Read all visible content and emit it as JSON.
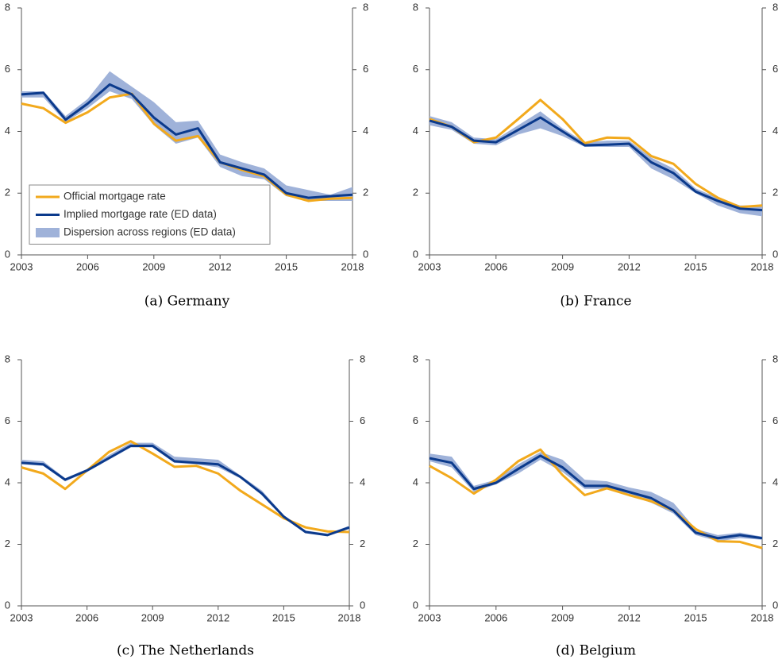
{
  "chart_data": [
    {
      "type": "line",
      "title": "(a) Germany",
      "x": [
        2003,
        2004,
        2005,
        2006,
        2007,
        2008,
        2009,
        2010,
        2011,
        2012,
        2013,
        2014,
        2015,
        2016,
        2017,
        2018
      ],
      "xlim": [
        2003,
        2018
      ],
      "xticks": [
        2003,
        2006,
        2009,
        2012,
        2015,
        2018
      ],
      "ylim": [
        0,
        8
      ],
      "yticks": [
        0,
        2,
        4,
        6,
        8
      ],
      "y2lim": [
        0,
        8
      ],
      "y2ticks": [
        0,
        2,
        4,
        6,
        8
      ],
      "legend": "lower left",
      "series": [
        {
          "name": "Official mortgage rate",
          "color": "#f2a91c",
          "values": [
            4.9,
            4.75,
            4.28,
            4.62,
            5.1,
            5.22,
            4.25,
            3.7,
            3.85,
            3.0,
            2.75,
            2.55,
            1.95,
            1.75,
            1.82,
            1.85
          ]
        },
        {
          "name": "Implied mortgage rate (ED data)",
          "color": "#0b3a8c",
          "values": [
            5.2,
            5.25,
            4.38,
            4.9,
            5.52,
            5.2,
            4.45,
            3.9,
            4.1,
            3.0,
            2.8,
            2.6,
            2.0,
            1.85,
            1.9,
            1.95
          ]
        },
        {
          "name": "Dispersion across regions (ED data)",
          "type": "band",
          "color": "#9fb2d9",
          "low": [
            5.1,
            5.1,
            4.3,
            4.75,
            5.3,
            5.05,
            4.2,
            3.6,
            3.8,
            2.85,
            2.55,
            2.45,
            1.9,
            1.75,
            1.75,
            1.75
          ],
          "high": [
            5.3,
            5.3,
            4.5,
            5.05,
            5.95,
            5.45,
            4.95,
            4.3,
            4.35,
            3.25,
            3.0,
            2.8,
            2.25,
            2.1,
            1.95,
            2.2
          ]
        }
      ]
    },
    {
      "type": "line",
      "title": "(b) France",
      "x": [
        2003,
        2004,
        2005,
        2006,
        2007,
        2008,
        2009,
        2010,
        2011,
        2012,
        2013,
        2014,
        2015,
        2016,
        2017,
        2018
      ],
      "xlim": [
        2003,
        2018
      ],
      "xticks": [
        2003,
        2006,
        2009,
        2012,
        2015,
        2018
      ],
      "ylim": [
        0,
        8
      ],
      "yticks": [
        0,
        2,
        4,
        6,
        8
      ],
      "y2lim": [
        0,
        8
      ],
      "y2ticks": [
        0,
        2,
        4,
        6,
        8
      ],
      "series": [
        {
          "color": "#f2a91c",
          "values": [
            4.4,
            4.15,
            3.65,
            3.8,
            4.4,
            5.02,
            4.4,
            3.62,
            3.8,
            3.78,
            3.2,
            2.95,
            2.3,
            1.85,
            1.55,
            1.6
          ]
        },
        {
          "color": "#0b3a8c",
          "values": [
            4.35,
            4.15,
            3.7,
            3.65,
            4.05,
            4.45,
            4.0,
            3.55,
            3.57,
            3.6,
            3.0,
            2.65,
            2.05,
            1.75,
            1.5,
            1.45
          ]
        },
        {
          "type": "band",
          "color": "#9fb2d9",
          "low": [
            4.2,
            4.05,
            3.6,
            3.55,
            3.9,
            4.1,
            3.85,
            3.5,
            3.5,
            3.5,
            2.8,
            2.45,
            2.0,
            1.6,
            1.35,
            1.25
          ],
          "high": [
            4.5,
            4.3,
            3.8,
            3.75,
            4.2,
            4.65,
            4.1,
            3.65,
            3.7,
            3.7,
            3.15,
            2.8,
            2.15,
            1.85,
            1.6,
            1.6
          ]
        }
      ]
    },
    {
      "type": "line",
      "title": "(c) The Netherlands",
      "x": [
        2003,
        2004,
        2005,
        2006,
        2007,
        2008,
        2009,
        2010,
        2011,
        2012,
        2013,
        2014,
        2015,
        2016,
        2017,
        2018
      ],
      "xlim": [
        2003,
        2018
      ],
      "xticks": [
        2003,
        2006,
        2009,
        2012,
        2015,
        2018
      ],
      "ylim": [
        0,
        8
      ],
      "yticks": [
        0,
        2,
        4,
        6,
        8
      ],
      "y2lim": [
        0,
        8
      ],
      "y2ticks": [
        0,
        2,
        4,
        6,
        8
      ],
      "series": [
        {
          "color": "#f2a91c",
          "values": [
            4.5,
            4.3,
            3.8,
            4.4,
            5.0,
            5.35,
            4.95,
            4.52,
            4.55,
            4.3,
            3.75,
            3.3,
            2.85,
            2.55,
            2.42,
            2.4
          ]
        },
        {
          "color": "#0b3a8c",
          "values": [
            4.65,
            4.6,
            4.1,
            4.4,
            4.8,
            5.2,
            5.2,
            4.7,
            4.65,
            4.6,
            4.2,
            3.65,
            2.9,
            2.4,
            2.3,
            2.55
          ]
        },
        {
          "type": "band",
          "color": "#9fb2d9",
          "low": [
            4.6,
            4.55,
            4.05,
            4.35,
            4.75,
            5.15,
            5.15,
            4.65,
            4.6,
            4.5,
            4.15,
            3.6,
            2.85,
            2.38,
            2.28,
            2.5
          ],
          "high": [
            4.75,
            4.7,
            4.15,
            4.45,
            4.9,
            5.3,
            5.3,
            4.85,
            4.8,
            4.75,
            4.25,
            3.75,
            2.95,
            2.45,
            2.35,
            2.6
          ]
        }
      ]
    },
    {
      "type": "line",
      "title": "(d) Belgium",
      "x": [
        2003,
        2004,
        2005,
        2006,
        2007,
        2008,
        2009,
        2010,
        2011,
        2012,
        2013,
        2014,
        2015,
        2016,
        2017,
        2018
      ],
      "xlim": [
        2003,
        2018
      ],
      "xticks": [
        2003,
        2006,
        2009,
        2012,
        2015,
        2018
      ],
      "ylim": [
        0,
        8
      ],
      "yticks": [
        0,
        2,
        4,
        6,
        8
      ],
      "y2lim": [
        0,
        8
      ],
      "y2ticks": [
        0,
        2,
        4,
        6,
        8
      ],
      "series": [
        {
          "color": "#f2a91c",
          "values": [
            4.55,
            4.15,
            3.65,
            4.1,
            4.7,
            5.08,
            4.25,
            3.6,
            3.82,
            3.6,
            3.4,
            3.1,
            2.5,
            2.1,
            2.08,
            1.88
          ]
        },
        {
          "color": "#0b3a8c",
          "values": [
            4.8,
            4.65,
            3.8,
            4.0,
            4.45,
            4.88,
            4.5,
            3.9,
            3.9,
            3.7,
            3.5,
            3.1,
            2.38,
            2.2,
            2.3,
            2.2
          ]
        },
        {
          "type": "band",
          "color": "#9fb2d9",
          "low": [
            4.7,
            4.5,
            3.7,
            3.95,
            4.3,
            4.75,
            4.35,
            3.8,
            3.8,
            3.6,
            3.35,
            3.0,
            2.3,
            2.1,
            2.2,
            2.15
          ],
          "high": [
            4.95,
            4.85,
            3.9,
            4.1,
            4.6,
            5.0,
            4.75,
            4.1,
            4.05,
            3.85,
            3.7,
            3.35,
            2.5,
            2.3,
            2.38,
            2.25
          ]
        }
      ]
    }
  ]
}
